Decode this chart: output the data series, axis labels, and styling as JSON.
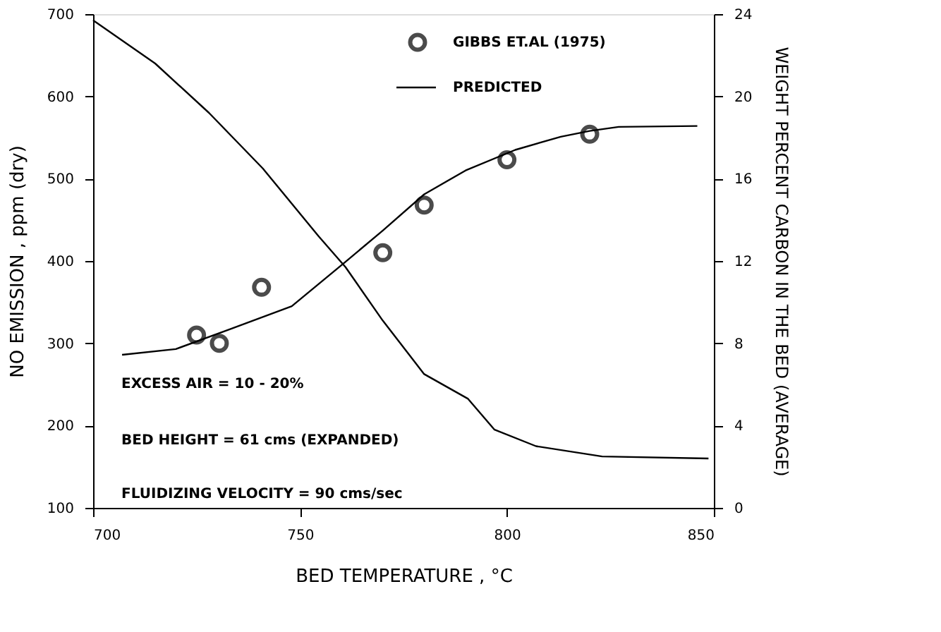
{
  "chart_data": {
    "type": "line",
    "xlabel": "BED TEMPERATURE , °C",
    "ylabel": "NO EMISSION , ppm (dry)",
    "y2label": "WEIGHT PERCENT CARBON IN THE BED (AVERAGE)",
    "xlim": [
      700,
      850
    ],
    "xticks": [
      700,
      750,
      800,
      850
    ],
    "ylim": [
      100,
      700
    ],
    "yticks": [
      100,
      200,
      300,
      400,
      500,
      600,
      700
    ],
    "y2lim": [
      0,
      24
    ],
    "y2ticks": [
      0,
      4,
      8,
      12,
      16,
      20,
      24
    ],
    "grid": false,
    "legend": "top",
    "line_style": "solid",
    "series": [
      {
        "name": "GIBBS ET.AL (1975)",
        "type": "scatter",
        "marker": "circle",
        "color": "#000000",
        "x": [
          725,
          730.5,
          740.7,
          770,
          780,
          800,
          820
        ],
        "values": [
          310,
          300,
          368,
          410,
          468,
          523,
          554
        ]
      },
      {
        "name": "PREDICTED",
        "color": "#000000",
        "x": [
          707,
          720,
          733,
          748,
          761,
          770,
          780,
          790,
          802,
          813,
          820,
          827,
          846
        ],
        "values": [
          286,
          293,
          317,
          345,
          399,
          437,
          481,
          510,
          535,
          551,
          558,
          563,
          564
        ]
      },
      {
        "axis": "y2",
        "color": "#000000",
        "x": [
          700,
          715,
          728,
          741,
          754.5,
          761,
          770,
          780,
          790.6,
          797,
          807,
          823,
          848.7
        ],
        "values": [
          23.7,
          21.6,
          19.2,
          16.5,
          13.2,
          11.7,
          9.1,
          6.5,
          5.3,
          3.8,
          3.0,
          2.5,
          2.4
        ]
      }
    ],
    "annotations": [
      "EXCESS AIR = 10 - 20%",
      "BED HEIGHT = 61 cms (EXPANDED)",
      "FLUIDIZING VELOCITY = 90 cms/sec"
    ]
  }
}
